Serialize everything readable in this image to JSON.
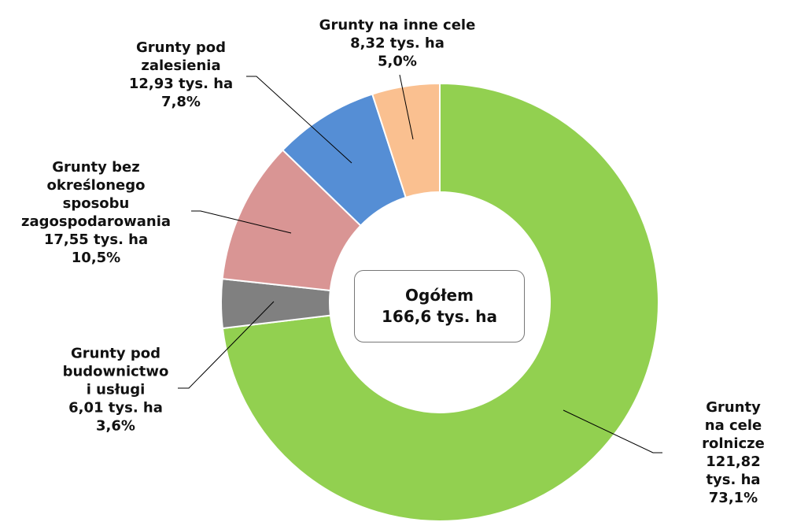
{
  "chart_data": {
    "type": "donut",
    "categories": [
      "Grunty na cele\nrolnicze",
      "Grunty pod\nbudownictwo\ni usługi",
      "Grunty bez\nokreślonego\nsposobu\nzagospodarowania",
      "Grunty pod\nzalesienia",
      "Grunty na inne cele"
    ],
    "values": [
      121.82,
      6.01,
      17.55,
      12.93,
      8.32
    ],
    "value_labels": [
      "121,82 tys. ha",
      "6,01 tys. ha",
      "17,55 tys. ha",
      "12,93 tys. ha",
      "8,32 tys. ha"
    ],
    "percents": [
      73.1,
      3.6,
      10.5,
      7.8,
      5.0
    ],
    "percent_labels": [
      "73,1%",
      "3,6%",
      "10,5%",
      "7,8%",
      "5,0%"
    ],
    "colors": [
      "#92d050",
      "#808080",
      "#d99594",
      "#558ed5",
      "#fac090"
    ],
    "center_label": "Ogółem",
    "total": 166.6,
    "total_label": "166,6 tys. ha"
  }
}
